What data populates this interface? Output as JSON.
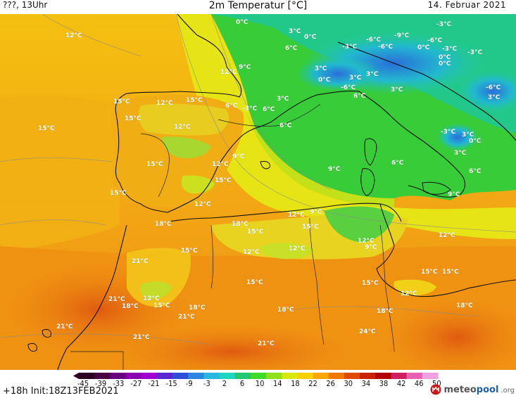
{
  "header": {
    "left_text": "???, 13Uhr",
    "title": "2m Temperatur [°C]",
    "date": "14. Februar 2021"
  },
  "labels": [
    "0°C",
    "3°C",
    "-3°C",
    "0°C",
    "-6°C",
    "-9°C",
    "-6°C",
    "-3°C",
    "12°C",
    "6°C",
    "-3°C",
    "-6°C",
    "0°C",
    "0°C",
    "-3°C",
    "0°C",
    "12°C",
    "9°C",
    "3°C",
    "0°C",
    "3°C",
    "-6°C",
    "3°C",
    "0°C",
    "3°C",
    "-6°C",
    "3°C",
    "6°C",
    "15°C",
    "12°C",
    "15°C",
    "3°C",
    "-3°C",
    "6°C",
    "3°C",
    "15°C",
    "12°C",
    "6°C",
    "6°C",
    "-3°C",
    "3°C",
    "0°C",
    "15°C",
    "9°C",
    "12°C",
    "3°C",
    "15°C",
    "9°C",
    "6°C",
    "6°C",
    "9°C",
    "15°C",
    "15°C",
    "12°C",
    "18°C",
    "18°C",
    "12°C",
    "9°C",
    "15°C",
    "15°C",
    "12°C",
    "12°C",
    "15°C",
    "12°C",
    "9°C",
    "12°C",
    "21°C",
    "15°C",
    "15°C",
    "15°C",
    "15°C",
    "12°C",
    "21°C",
    "12°C",
    "18°C",
    "15°C",
    "18°C",
    "18°C",
    "21°C",
    "18°C",
    "18°C",
    "21°C",
    "24°C",
    "21°C",
    "21°C"
  ],
  "legend": {
    "ticks": [
      "-45",
      "-39",
      "-33",
      "-27",
      "-21",
      "-15",
      "-9",
      "-3",
      "2",
      "6",
      "10",
      "14",
      "18",
      "22",
      "26",
      "30",
      "34",
      "38",
      "42",
      "46",
      "50"
    ],
    "colors": [
      "#2a0020",
      "#4a0040",
      "#6a0080",
      "#8a00b0",
      "#a000d0",
      "#5a28d0",
      "#2e4fd8",
      "#2c86e0",
      "#25b8e0",
      "#1fd4c0",
      "#22c870",
      "#3ddc2a",
      "#8ee01a",
      "#d8e810",
      "#f8d000",
      "#f8a800",
      "#f07800",
      "#e04a00",
      "#c82000",
      "#b00000",
      "#d02060",
      "#e860b0",
      "#f0a0e0"
    ]
  },
  "footer": {
    "init": "+18h Init:18Z13FEB2021",
    "brand_main": "meteo",
    "brand_accent": "pool",
    "brand_suffix": ".org"
  }
}
